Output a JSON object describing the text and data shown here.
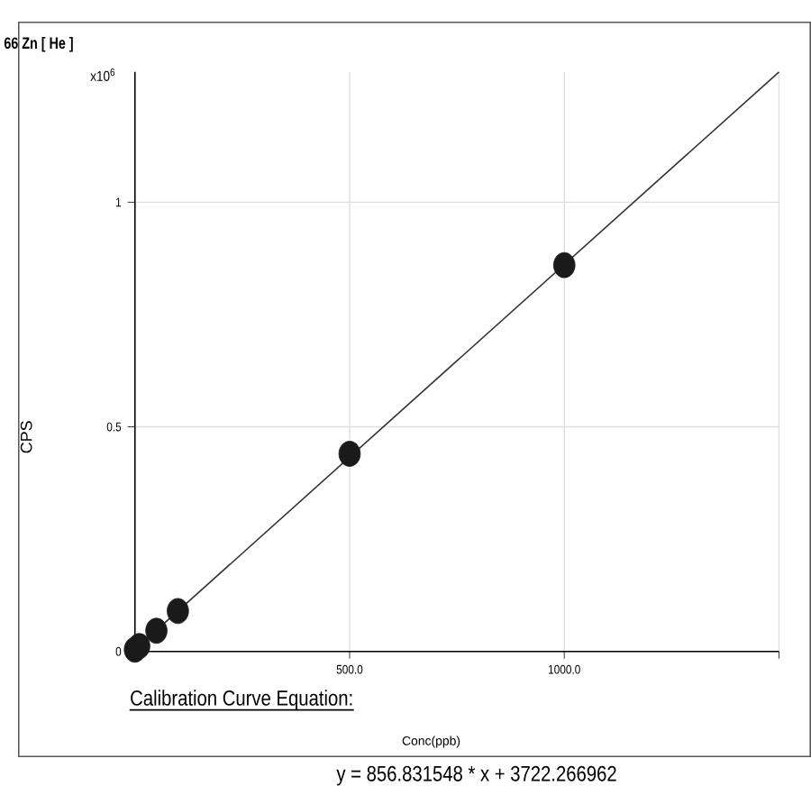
{
  "chart_data": {
    "type": "scatter",
    "title": "66 Zn [ He ]",
    "xlabel": "Conc(ppb)",
    "ylabel": "CPS",
    "annotations": [
      "x10$^{6}$",
      "Calibration Curve Equation:",
      "y = 856.831548 * x  + 3722.266962"
    ],
    "x": [
      0,
      10,
      50,
      100,
      500,
      1000
    ],
    "series": [
      {
        "color": "#1a1a1a",
        "values": [
          0.004,
          0.012,
          0.046,
          0.09,
          0.44,
          0.86
        ]
      },
      {
        "type": "line",
        "color": "#333333",
        "marker": "none",
        "x": [
          0,
          1500
        ],
        "values": [
          0.004,
          1.29
        ]
      }
    ],
    "xlim": [
      0,
      1500
    ],
    "ylim": [
      0,
      1.29
    ],
    "xticks": [
      {
        "value": 0,
        "label": null
      },
      {
        "value": 500,
        "label": "500.0"
      },
      {
        "value": 1000,
        "label": "1000.0"
      },
      {
        "value": 1500,
        "label": null
      }
    ],
    "yticks": [
      0,
      0.5,
      1
    ],
    "grid": true,
    "marker": "circle"
  }
}
